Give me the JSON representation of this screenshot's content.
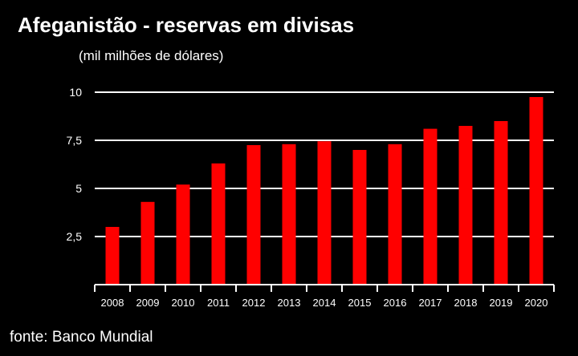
{
  "chart_data": {
    "type": "bar",
    "title": "Afeganistão - reservas em divisas",
    "subtitle": "(mil milhões de dólares)",
    "source": "fonte: Banco Mundial",
    "categories": [
      "2008",
      "2009",
      "2010",
      "2011",
      "2012",
      "2013",
      "2014",
      "2015",
      "2016",
      "2017",
      "2018",
      "2019",
      "2020"
    ],
    "values": [
      3.0,
      4.3,
      5.2,
      6.3,
      7.25,
      7.3,
      7.45,
      7.0,
      7.3,
      8.1,
      8.25,
      8.5,
      9.75
    ],
    "ylim": [
      0,
      10
    ],
    "yticks": [
      {
        "value": 2.5,
        "label": "2,5"
      },
      {
        "value": 5,
        "label": "5"
      },
      {
        "value": 7.5,
        "label": "7,5"
      },
      {
        "value": 10,
        "label": "10"
      }
    ],
    "grid": true,
    "colors": {
      "bar": "#ff0000",
      "background": "#000000",
      "grid": "#ffffff",
      "text": "#ffffff"
    }
  }
}
